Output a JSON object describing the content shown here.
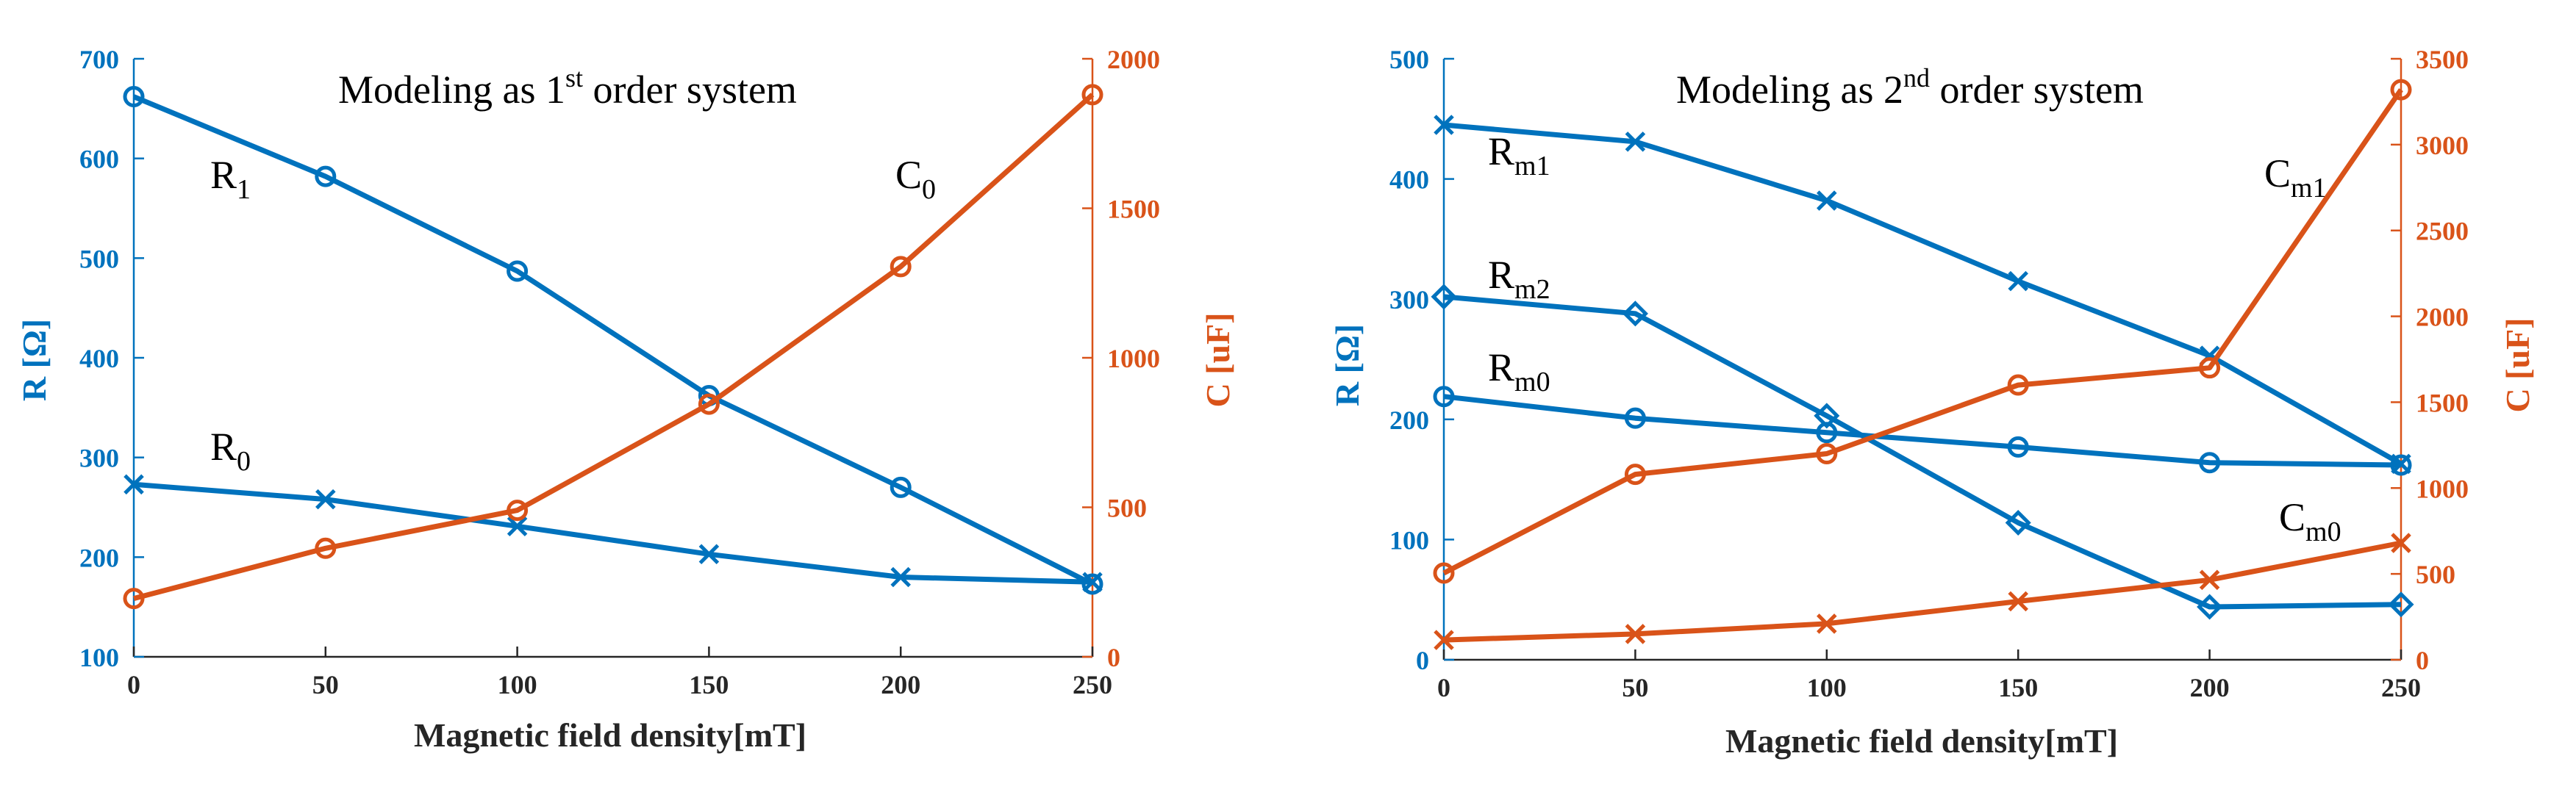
{
  "colors": {
    "blue": "#0072BD",
    "orange": "#D95319",
    "axis": "#262626"
  },
  "chart_data": [
    {
      "type": "line",
      "title_main": "Modeling as 1",
      "title_sup": "st",
      "title_rest": " order system",
      "xlabel": "Magnetic field density[mT]",
      "ylabel_left": "R [Ω]",
      "ylabel_right": "C [uF]",
      "xlim": [
        0,
        250
      ],
      "ylim_left": [
        100,
        700
      ],
      "ylim_right": [
        0,
        2000
      ],
      "xticks": [
        0,
        50,
        100,
        150,
        200,
        250
      ],
      "yticks_left": [
        100,
        200,
        300,
        400,
        500,
        600,
        700
      ],
      "yticks_right": [
        0,
        500,
        1000,
        1500,
        2000
      ],
      "x": [
        0,
        50,
        100,
        150,
        200,
        250
      ],
      "series": [
        {
          "name": "R1",
          "label_base": "R",
          "label_sub": "1",
          "axis": "left",
          "color": "#0072BD",
          "marker": "circle",
          "values": [
            662,
            582,
            487,
            362,
            270,
            173
          ]
        },
        {
          "name": "R0",
          "label_base": "R",
          "label_sub": "0",
          "axis": "left",
          "color": "#0072BD",
          "marker": "x",
          "values": [
            273,
            258,
            231,
            203,
            180,
            175
          ]
        },
        {
          "name": "C0",
          "label_base": "C",
          "label_sub": "0",
          "axis": "right",
          "color": "#D95319",
          "marker": "circle",
          "values": [
            195,
            363,
            490,
            845,
            1305,
            1880
          ]
        }
      ]
    },
    {
      "type": "line",
      "title_main": "Modeling as 2",
      "title_sup": "nd",
      "title_rest": " order system",
      "xlabel": "Magnetic field density[mT]",
      "ylabel_left": "R [Ω]",
      "ylabel_right": "C [uF]",
      "xlim": [
        0,
        250
      ],
      "ylim_left": [
        0,
        500
      ],
      "ylim_right": [
        0,
        3500
      ],
      "xticks": [
        0,
        50,
        100,
        150,
        200,
        250
      ],
      "yticks_left": [
        0,
        100,
        200,
        300,
        400,
        500
      ],
      "yticks_right": [
        0,
        500,
        1000,
        1500,
        2000,
        2500,
        3000,
        3500
      ],
      "x": [
        0,
        50,
        100,
        150,
        200,
        250
      ],
      "series": [
        {
          "name": "Rm1",
          "label_base": "R",
          "label_sub": "m1",
          "axis": "left",
          "color": "#0072BD",
          "marker": "x",
          "values": [
            445,
            431,
            382,
            315,
            253,
            163
          ]
        },
        {
          "name": "Rm2",
          "label_base": "R",
          "label_sub": "m2",
          "axis": "left",
          "color": "#0072BD",
          "marker": "diamond",
          "values": [
            302,
            288,
            203,
            114,
            44,
            46
          ]
        },
        {
          "name": "Rm0",
          "label_base": "R",
          "label_sub": "m0",
          "axis": "left",
          "color": "#0072BD",
          "marker": "circle",
          "values": [
            219,
            201,
            189,
            177,
            164,
            162
          ]
        },
        {
          "name": "Cm1",
          "label_base": "C",
          "label_sub": "m1",
          "axis": "right",
          "color": "#D95319",
          "marker": "circle",
          "values": [
            505,
            1080,
            1200,
            1600,
            1700,
            3320
          ]
        },
        {
          "name": "Cm0",
          "label_base": "C",
          "label_sub": "m0",
          "axis": "right",
          "color": "#D95319",
          "marker": "x",
          "values": [
            115,
            150,
            210,
            340,
            465,
            680
          ]
        }
      ]
    }
  ]
}
